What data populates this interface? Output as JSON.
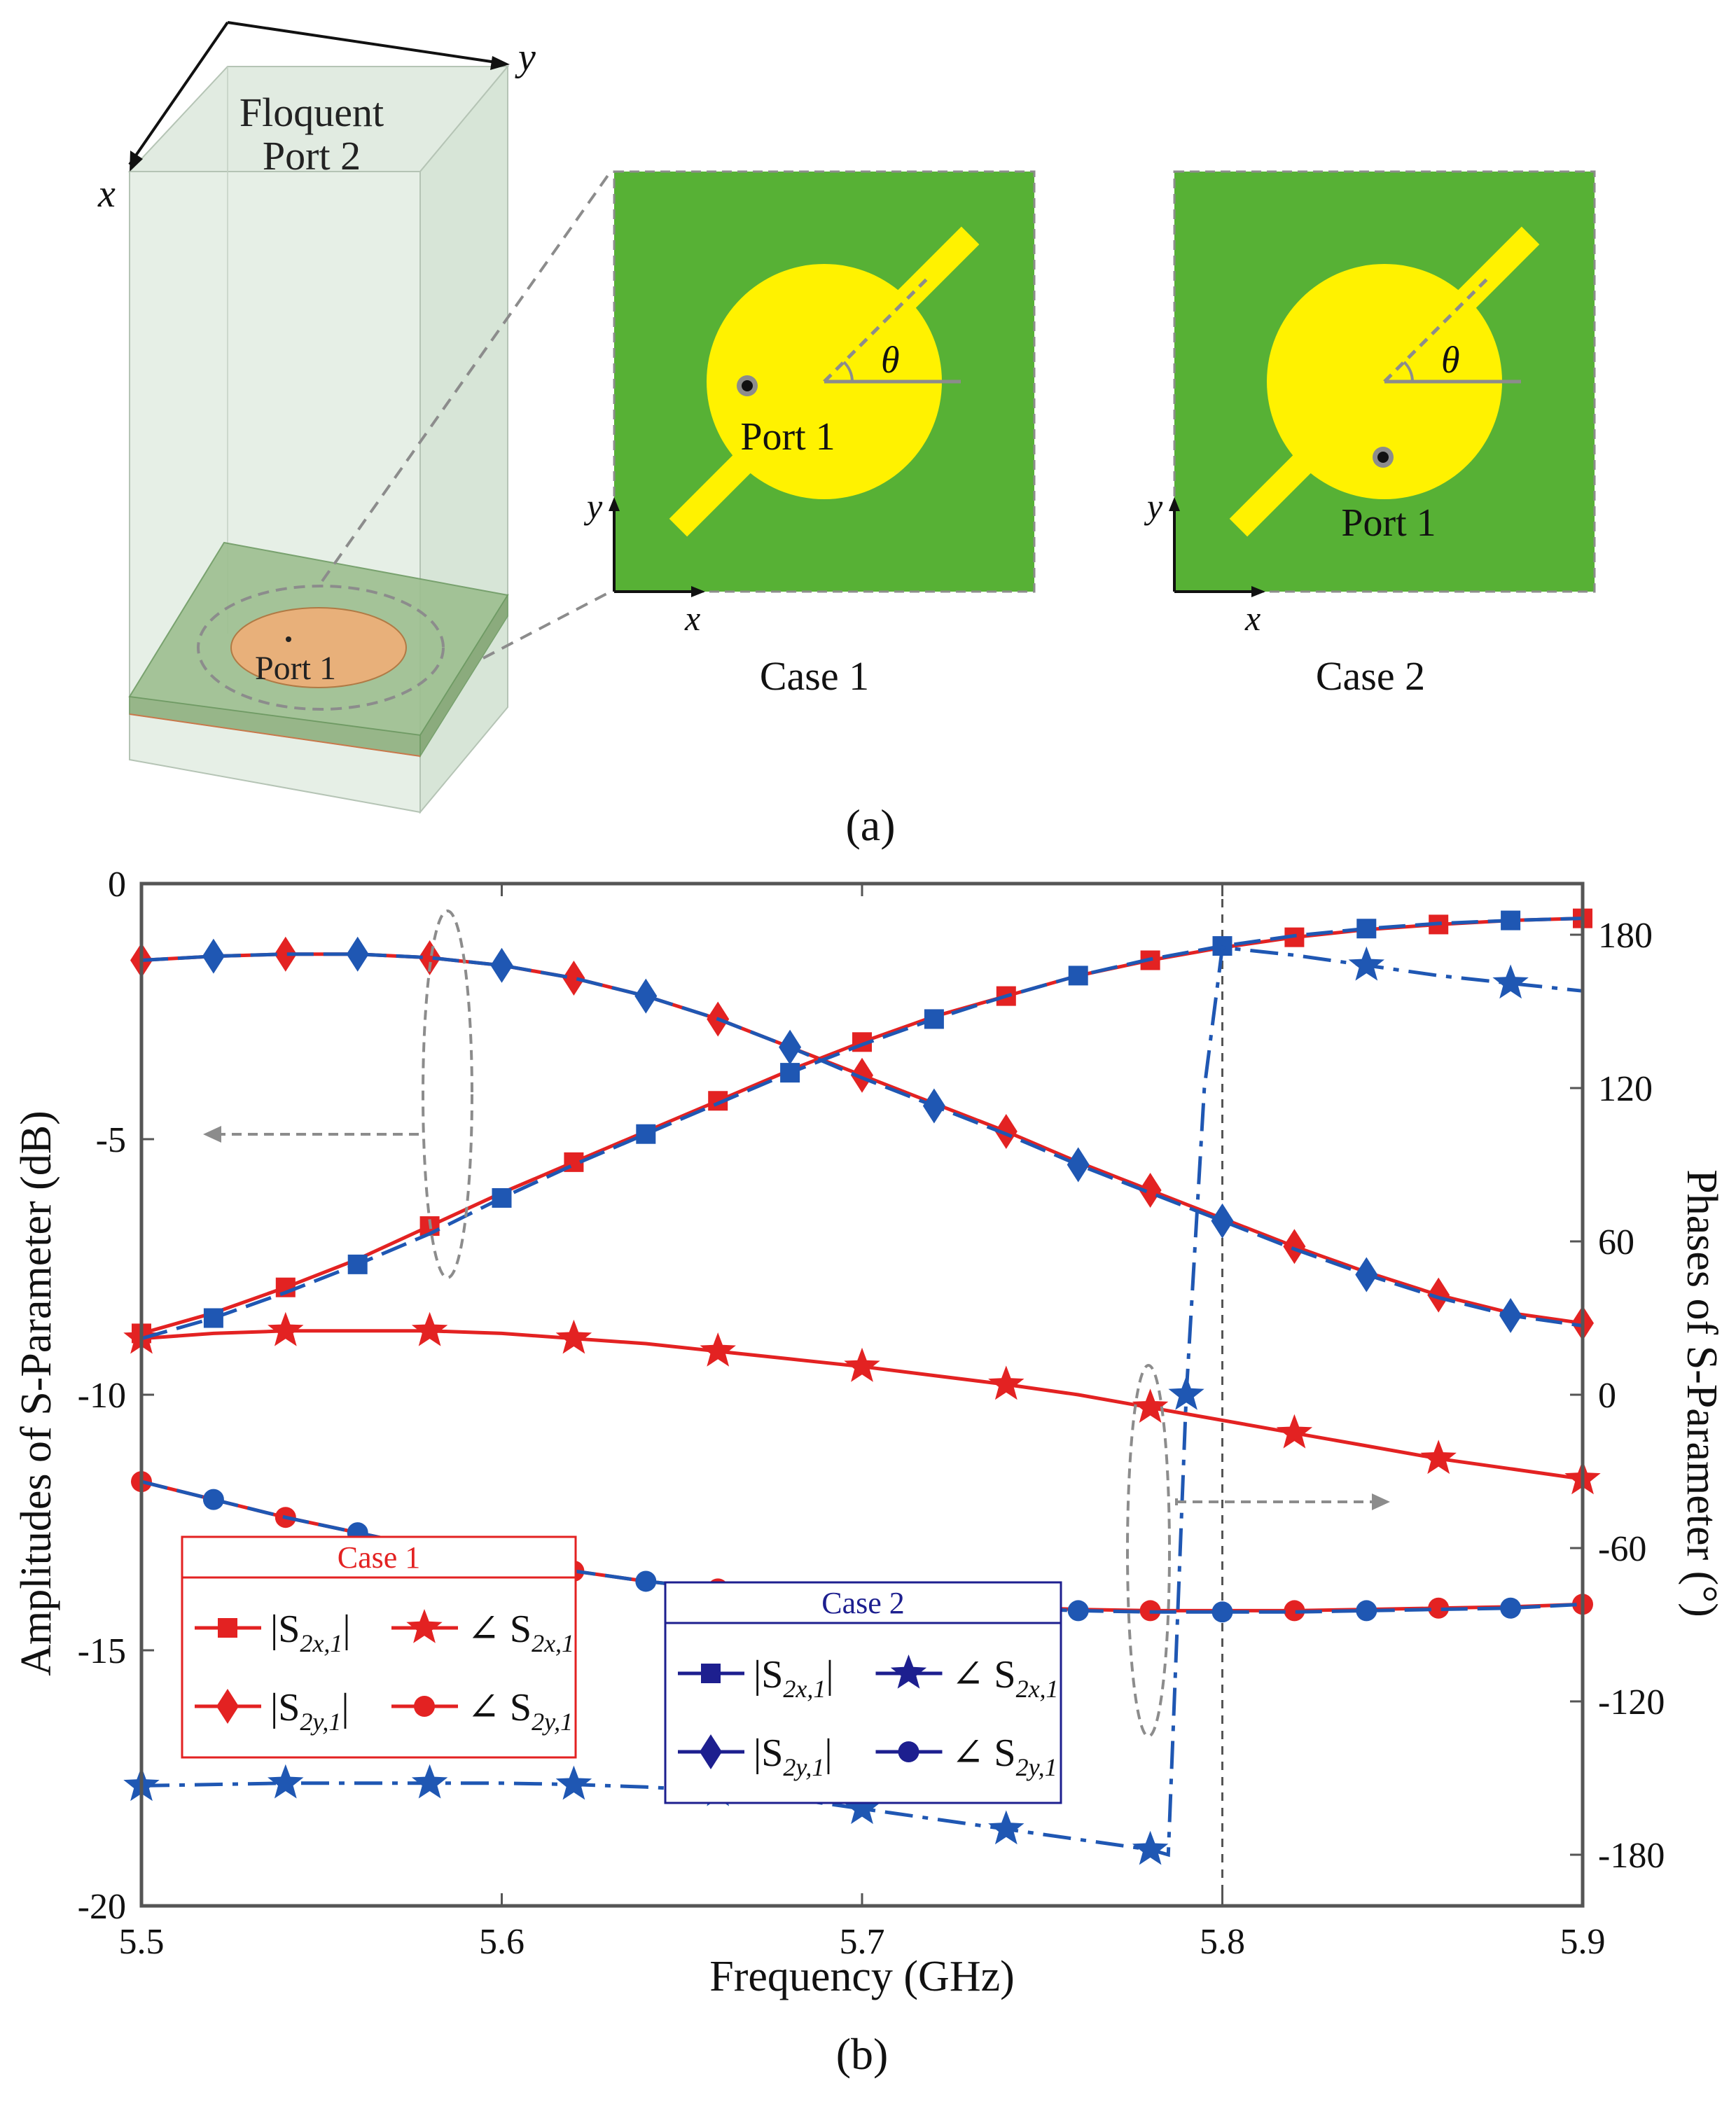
{
  "panel_a": {
    "caption": "(a)",
    "floquet_label_line1": "Floquent",
    "floquet_label_line2": "Port 2",
    "axis_x": "x",
    "axis_y": "y",
    "port_label": "Port 1",
    "theta_label": "θ",
    "case1_caption": "Case 1",
    "case2_caption": "Case 2"
  },
  "panel_b": {
    "caption": "(b)"
  },
  "colors": {
    "case1": "#e32222",
    "case2": "#1f57b3",
    "case2_legend": "#1d1f8f",
    "substrate_green": "#57b135",
    "patch_yellow": "#fff200",
    "guide_gray": "#8c8c8c"
  },
  "chart_data": {
    "type": "line",
    "xlabel": "Frequency (GHz)",
    "ylabel_left": "Amplitudes of S-Parameter (dB)",
    "ylabel_right": "Phases of S-Parameter (°)",
    "xlim": [
      5.5,
      5.9
    ],
    "ylim_left": [
      -20,
      0
    ],
    "ylim_right": [
      -200,
      200
    ],
    "x_ticks": [
      "5.5",
      "5.6",
      "5.7",
      "5.8",
      "5.9"
    ],
    "y_ticks_left": [
      "0",
      "-5",
      "-10",
      "-15",
      "-20"
    ],
    "y_ticks_right": [
      "180",
      "120",
      "60",
      "0",
      "-60",
      "-120",
      "-180"
    ],
    "x": [
      5.5,
      5.52,
      5.54,
      5.56,
      5.58,
      5.6,
      5.62,
      5.64,
      5.66,
      5.68,
      5.7,
      5.72,
      5.74,
      5.76,
      5.78,
      5.8,
      5.82,
      5.84,
      5.86,
      5.88,
      5.9
    ],
    "series": [
      {
        "name": "|S2x,1| Case 1",
        "case": 1,
        "axis": "left",
        "marker": "square",
        "values": [
          -8.8,
          -8.4,
          -7.9,
          -7.35,
          -6.7,
          -6.05,
          -5.45,
          -4.85,
          -4.25,
          -3.65,
          -3.1,
          -2.6,
          -2.2,
          -1.8,
          -1.5,
          -1.25,
          -1.05,
          -0.9,
          -0.8,
          -0.72,
          -0.68
        ]
      },
      {
        "name": "|S2y,1| Case 1",
        "case": 1,
        "axis": "left",
        "marker": "diamond",
        "values": [
          -1.5,
          -1.42,
          -1.38,
          -1.38,
          -1.45,
          -1.6,
          -1.85,
          -2.2,
          -2.65,
          -3.2,
          -3.75,
          -4.3,
          -4.85,
          -5.45,
          -6.0,
          -6.55,
          -7.1,
          -7.6,
          -8.05,
          -8.4,
          -8.6
        ]
      },
      {
        "name": "∠S2x,1 Case 1",
        "case": 1,
        "axis": "right",
        "marker": "star",
        "values": [
          22,
          24,
          25,
          25,
          25,
          24,
          22,
          20,
          17,
          14,
          11,
          7.5,
          4,
          0,
          -5,
          -10,
          -15,
          -20,
          -25,
          -29,
          -33
        ]
      },
      {
        "name": "∠S2y,1 Case 1",
        "case": 1,
        "axis": "right",
        "marker": "circle",
        "values": [
          -34,
          -41,
          -48,
          -54,
          -60,
          -65,
          -69,
          -73,
          -76,
          -79,
          -81,
          -82,
          -83,
          -84,
          -84.5,
          -84.5,
          -84.5,
          -84,
          -83.5,
          -83,
          -82
        ]
      },
      {
        "name": "|S2x,1| Case 2",
        "case": 2,
        "axis": "left",
        "marker": "square",
        "values": [
          -8.9,
          -8.5,
          -8.0,
          -7.45,
          -6.85,
          -6.15,
          -5.5,
          -4.9,
          -4.3,
          -3.7,
          -3.15,
          -2.65,
          -2.2,
          -1.8,
          -1.48,
          -1.22,
          -1.02,
          -0.88,
          -0.78,
          -0.72,
          -0.68
        ]
      },
      {
        "name": "|S2y,1| Case 2",
        "case": 2,
        "axis": "left",
        "marker": "diamond",
        "values": [
          -1.5,
          -1.42,
          -1.38,
          -1.38,
          -1.45,
          -1.6,
          -1.85,
          -2.2,
          -2.65,
          -3.2,
          -3.8,
          -4.35,
          -4.9,
          -5.5,
          -6.05,
          -6.6,
          -7.15,
          -7.65,
          -8.1,
          -8.45,
          -8.65
        ]
      },
      {
        "name": "∠S2x,1 Case 2",
        "case": 2,
        "axis": "right",
        "marker": "star",
        "x": [
          5.5,
          5.52,
          5.54,
          5.56,
          5.58,
          5.6,
          5.62,
          5.64,
          5.66,
          5.68,
          5.7,
          5.72,
          5.74,
          5.76,
          5.78,
          5.785,
          5.79,
          5.795,
          5.8,
          5.82,
          5.84,
          5.86,
          5.88,
          5.9
        ],
        "values": [
          -153,
          -152.5,
          -152,
          -152,
          -152,
          -152,
          -152.5,
          -153.5,
          -155,
          -158,
          -162,
          -166,
          -170,
          -174,
          -178,
          -180,
          0,
          120,
          175,
          172,
          168,
          164,
          161,
          158
        ]
      },
      {
        "name": "∠S2y,1 Case 2",
        "case": 2,
        "axis": "right",
        "marker": "circle",
        "values": [
          -34,
          -41,
          -48,
          -54,
          -60,
          -65,
          -69,
          -73,
          -76,
          -79,
          -81,
          -82.5,
          -83.5,
          -84.5,
          -85,
          -85,
          -85,
          -84.5,
          -84,
          -83.5,
          -82
        ]
      }
    ],
    "legend_case1": {
      "title": "Case 1",
      "entries": [
        {
          "marker": "square",
          "prefix": "|S",
          "sub": "2x,1",
          "suffix": "|"
        },
        {
          "marker": "star",
          "prefix": "∠ S",
          "sub": "2x,1",
          "suffix": ""
        },
        {
          "marker": "diamond",
          "prefix": "|S",
          "sub": "2y,1",
          "suffix": "|"
        },
        {
          "marker": "circle",
          "prefix": "∠ S",
          "sub": "2y,1",
          "suffix": ""
        }
      ]
    },
    "legend_case2": {
      "title": "Case 2",
      "entries": [
        {
          "marker": "square",
          "prefix": "|S",
          "sub": "2x,1",
          "suffix": "|"
        },
        {
          "marker": "star",
          "prefix": "∠ S",
          "sub": "2x,1",
          "suffix": ""
        },
        {
          "marker": "diamond",
          "prefix": "|S",
          "sub": "2y,1",
          "suffix": "|"
        },
        {
          "marker": "circle",
          "prefix": "∠ S",
          "sub": "2y,1",
          "suffix": ""
        }
      ]
    }
  }
}
